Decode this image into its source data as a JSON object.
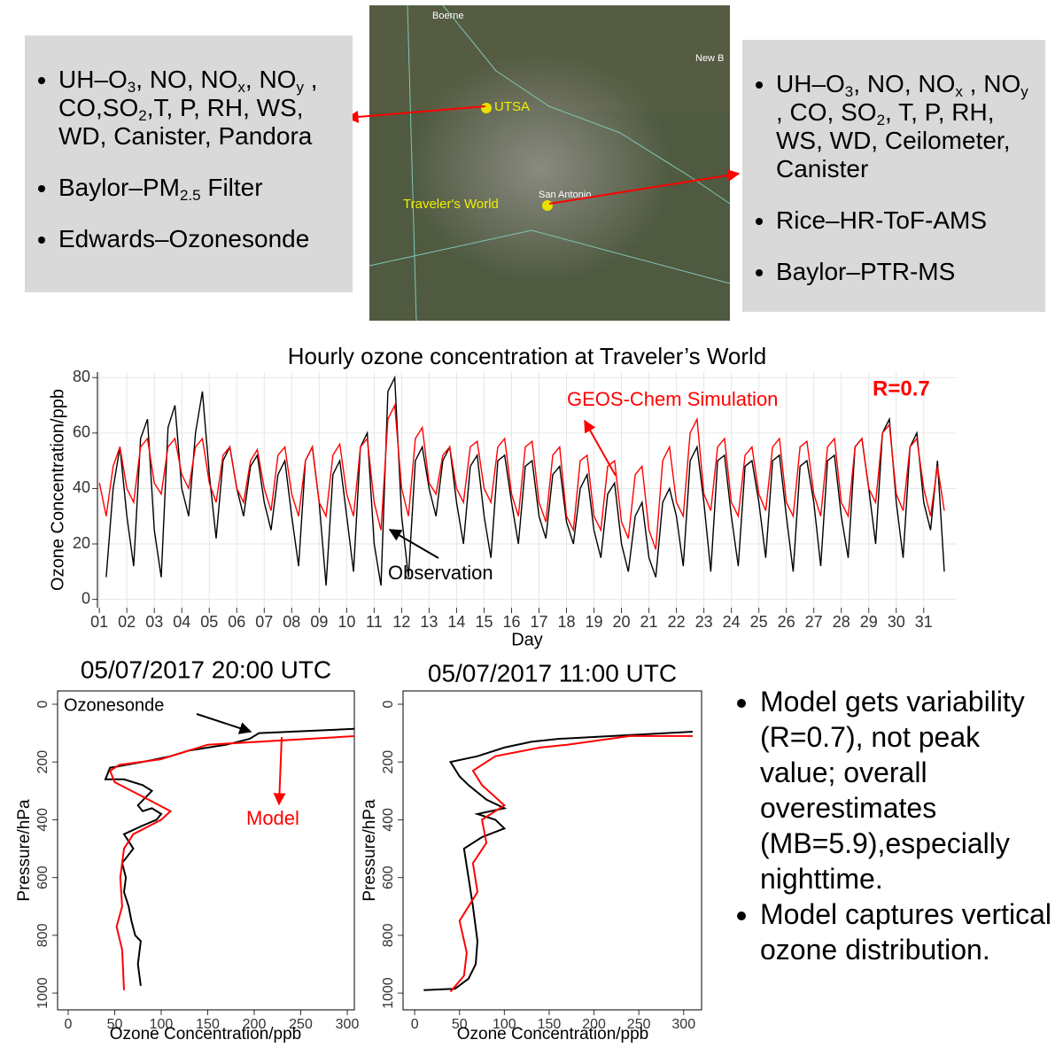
{
  "left_box": {
    "items": [
      {
        "parts": [
          {
            "text": "UH–O"
          },
          {
            "sub": "3"
          },
          {
            "text": ", NO, NO"
          },
          {
            "sub": "x"
          },
          {
            "text": ", NO"
          },
          {
            "sub": "y"
          },
          {
            "text": " , CO,SO"
          },
          {
            "sub": "2"
          },
          {
            "text": ",T, P, RH, WS, WD, Canister, Pandora"
          }
        ]
      },
      {
        "parts": [
          {
            "text": "Baylor–PM"
          },
          {
            "sub": "2.5"
          },
          {
            "text": " Filter"
          }
        ]
      },
      {
        "parts": [
          {
            "text": "Edwards–Ozonesonde"
          }
        ]
      }
    ]
  },
  "right_box": {
    "items": [
      {
        "parts": [
          {
            "text": "UH–O"
          },
          {
            "sub": "3"
          },
          {
            "text": ", NO, NO"
          },
          {
            "sub": "x"
          },
          {
            "text": " , NO"
          },
          {
            "sub": "y"
          },
          {
            "text": " , CO, SO"
          },
          {
            "sub": "2"
          },
          {
            "text": ", T, P, RH, WS, WD, Ceilometer, Canister"
          }
        ]
      },
      {
        "parts": [
          {
            "text": "Rice–HR-ToF-AMS"
          }
        ]
      },
      {
        "parts": [
          {
            "text": "Baylor–PTR-MS"
          }
        ]
      }
    ]
  },
  "map": {
    "labels": [
      "Boerne",
      "New B",
      "San Antonio"
    ],
    "sites": [
      "UTSA",
      "Traveler's World"
    ]
  },
  "notes": [
    "Model gets variability (R=0.7), not peak value; overall overestimates (MB=5.9),especially nighttime.",
    "Model captures vertical ozone distribution."
  ],
  "chart_data": [
    {
      "type": "line",
      "title": "Hourly ozone concentration at Traveler’s World",
      "x_label": "Day",
      "y_label": "Ozone Concentration/ppb",
      "annotations": [
        {
          "text": "GEOS-Chem Simulation",
          "color": "#ff0000"
        },
        {
          "text": "R=0.7",
          "color": "#ff0000"
        },
        {
          "text": "Observation",
          "color": "#000000"
        }
      ],
      "grid": true,
      "xlim": [
        0.93,
        32.2
      ],
      "ylim": [
        -3,
        82
      ],
      "xticks": [
        {
          "value": 1,
          "label": "01"
        },
        {
          "value": 2,
          "label": "02"
        },
        {
          "value": 3,
          "label": "03"
        },
        {
          "value": 4,
          "label": "04"
        },
        {
          "value": 5,
          "label": "05"
        },
        {
          "value": 6,
          "label": "06"
        },
        {
          "value": 7,
          "label": "07"
        },
        {
          "value": 8,
          "label": "08"
        },
        {
          "value": 9,
          "label": "09"
        },
        10,
        11,
        12,
        13,
        14,
        15,
        16,
        17,
        18,
        19,
        20,
        21,
        22,
        23,
        24,
        25,
        26,
        27,
        28,
        29,
        30,
        31
      ],
      "yticks": [
        0,
        20,
        40,
        60,
        80
      ],
      "x": [
        1,
        1.25,
        1.5,
        1.75,
        2,
        2.25,
        2.5,
        2.75,
        3,
        3.25,
        3.5,
        3.75,
        4,
        4.25,
        4.5,
        4.75,
        5,
        5.25,
        5.5,
        5.75,
        6,
        6.25,
        6.5,
        6.75,
        7,
        7.25,
        7.5,
        7.75,
        8,
        8.25,
        8.5,
        8.75,
        9,
        9.25,
        9.5,
        9.75,
        10,
        10.25,
        10.5,
        10.75,
        11,
        11.25,
        11.5,
        11.75,
        12,
        12.25,
        12.5,
        12.75,
        13,
        13.25,
        13.5,
        13.75,
        14,
        14.25,
        14.5,
        14.75,
        15,
        15.25,
        15.5,
        15.75,
        16,
        16.25,
        16.5,
        16.75,
        17,
        17.25,
        17.5,
        17.75,
        18,
        18.25,
        18.5,
        18.75,
        19,
        19.25,
        19.5,
        19.75,
        20,
        20.25,
        20.5,
        20.75,
        21,
        21.25,
        21.5,
        21.75,
        22,
        22.25,
        22.5,
        22.75,
        23,
        23.25,
        23.5,
        23.75,
        24,
        24.25,
        24.5,
        24.75,
        25,
        25.25,
        25.5,
        25.75,
        26,
        26.25,
        26.5,
        26.75,
        27,
        27.25,
        27.5,
        27.75,
        28,
        28.25,
        28.5,
        28.75,
        29,
        29.25,
        29.5,
        29.75,
        30,
        30.25,
        30.5,
        30.75,
        31,
        31.25,
        31.5,
        31.75
      ],
      "series": [
        {
          "name": "Observation",
          "color": "#000000",
          "values": [
            null,
            8,
            40,
            55,
            30,
            12,
            58,
            65,
            25,
            8,
            62,
            70,
            40,
            30,
            60,
            75,
            45,
            22,
            50,
            55,
            40,
            30,
            48,
            52,
            35,
            25,
            45,
            50,
            30,
            12,
            50,
            55,
            35,
            5,
            45,
            50,
            30,
            10,
            55,
            60,
            20,
            5,
            75,
            80,
            30,
            8,
            50,
            55,
            40,
            30,
            50,
            55,
            35,
            20,
            48,
            52,
            30,
            15,
            50,
            52,
            35,
            20,
            48,
            50,
            30,
            22,
            45,
            48,
            28,
            20,
            40,
            45,
            25,
            15,
            38,
            42,
            20,
            10,
            30,
            35,
            15,
            8,
            35,
            40,
            30,
            12,
            50,
            55,
            35,
            10,
            50,
            52,
            30,
            12,
            48,
            50,
            35,
            15,
            50,
            52,
            30,
            10,
            48,
            50,
            35,
            12,
            50,
            52,
            30,
            15,
            55,
            58,
            40,
            20,
            60,
            65,
            35,
            15,
            55,
            60,
            35,
            25,
            50,
            10
          ]
        },
        {
          "name": "GEOS-Chem Simulation",
          "color": "#ff0000",
          "values": [
            42,
            30,
            48,
            55,
            40,
            35,
            55,
            58,
            42,
            38,
            55,
            58,
            45,
            40,
            55,
            58,
            42,
            35,
            52,
            55,
            40,
            35,
            50,
            54,
            40,
            32,
            52,
            55,
            38,
            30,
            50,
            55,
            35,
            30,
            52,
            56,
            38,
            30,
            55,
            58,
            35,
            25,
            65,
            70,
            40,
            30,
            58,
            62,
            42,
            38,
            52,
            55,
            40,
            35,
            55,
            57,
            40,
            35,
            55,
            58,
            38,
            30,
            55,
            57,
            35,
            28,
            52,
            55,
            30,
            25,
            50,
            52,
            30,
            25,
            48,
            50,
            28,
            22,
            45,
            48,
            25,
            18,
            50,
            55,
            35,
            30,
            60,
            65,
            38,
            32,
            55,
            58,
            35,
            30,
            52,
            55,
            38,
            32,
            55,
            58,
            35,
            30,
            55,
            57,
            38,
            30,
            55,
            58,
            35,
            30,
            55,
            58,
            40,
            35,
            60,
            63,
            38,
            32,
            55,
            58,
            40,
            30,
            48,
            32
          ]
        }
      ]
    },
    {
      "type": "line",
      "title": "05/07/2017 20:00 UTC",
      "x_label": "Ozone Concentration/ppb",
      "y_label": "Pressure/hPa",
      "annotations": [
        {
          "text": "Ozonesonde",
          "color": "#000000"
        },
        {
          "text": "Model",
          "color": "#ff0000"
        }
      ],
      "xlim": [
        -11.4,
        307.6
      ],
      "ylim": [
        1058,
        -46
      ],
      "xticks": [
        0,
        50,
        100,
        150,
        200,
        250,
        300
      ],
      "yticks": [
        0,
        200,
        400,
        600,
        800,
        1000
      ],
      "series": [
        {
          "name": "Ozonesonde",
          "color": "#000000",
          "x": [
            78,
            75,
            78,
            72,
            68,
            65,
            60,
            62,
            58,
            70,
            60,
            80,
            95,
            100,
            90,
            80,
            75,
            90,
            80,
            60,
            40,
            45,
            80,
            110,
            130,
            170,
            195,
            205,
            310
          ],
          "y": [
            975,
            900,
            820,
            800,
            750,
            700,
            650,
            600,
            550,
            500,
            450,
            420,
            400,
            380,
            360,
            370,
            350,
            300,
            280,
            260,
            260,
            220,
            200,
            180,
            160,
            140,
            120,
            100,
            85
          ]
        },
        {
          "name": "Model",
          "color": "#ff0000",
          "x": [
            60,
            58,
            52,
            58,
            56,
            60,
            70,
            100,
            110,
            80,
            50,
            45,
            55,
            100,
            150,
            310
          ],
          "y": [
            990,
            850,
            770,
            700,
            600,
            500,
            450,
            400,
            370,
            320,
            270,
            230,
            210,
            190,
            140,
            110
          ]
        }
      ]
    },
    {
      "type": "line",
      "title": "05/07/2017 11:00 UTC",
      "x_label": "Ozone Concentration/ppb",
      "y_label": "Pressure/hPa",
      "xlim": [
        -13,
        320
      ],
      "ylim": [
        1058,
        -46
      ],
      "xticks": [
        0,
        50,
        100,
        150,
        200,
        250,
        300
      ],
      "yticks": [
        0,
        200,
        400,
        600,
        800,
        1000
      ],
      "series": [
        {
          "name": "Ozonesonde",
          "color": "#000000",
          "x": [
            10,
            45,
            60,
            68,
            70,
            65,
            60,
            55,
            75,
            100,
            90,
            70,
            100,
            80,
            60,
            50,
            40,
            70,
            100,
            130,
            160,
            220,
            310
          ],
          "y": [
            990,
            985,
            950,
            900,
            820,
            700,
            600,
            500,
            460,
            430,
            400,
            380,
            360,
            330,
            280,
            250,
            200,
            180,
            150,
            130,
            120,
            110,
            95
          ]
        },
        {
          "name": "Model",
          "color": "#ff0000",
          "x": [
            40,
            55,
            58,
            50,
            70,
            65,
            80,
            75,
            100,
            75,
            65,
            90,
            140,
            170,
            240,
            310
          ],
          "y": [
            995,
            940,
            860,
            750,
            650,
            550,
            480,
            400,
            350,
            280,
            230,
            180,
            150,
            140,
            110,
            110
          ]
        }
      ]
    }
  ]
}
